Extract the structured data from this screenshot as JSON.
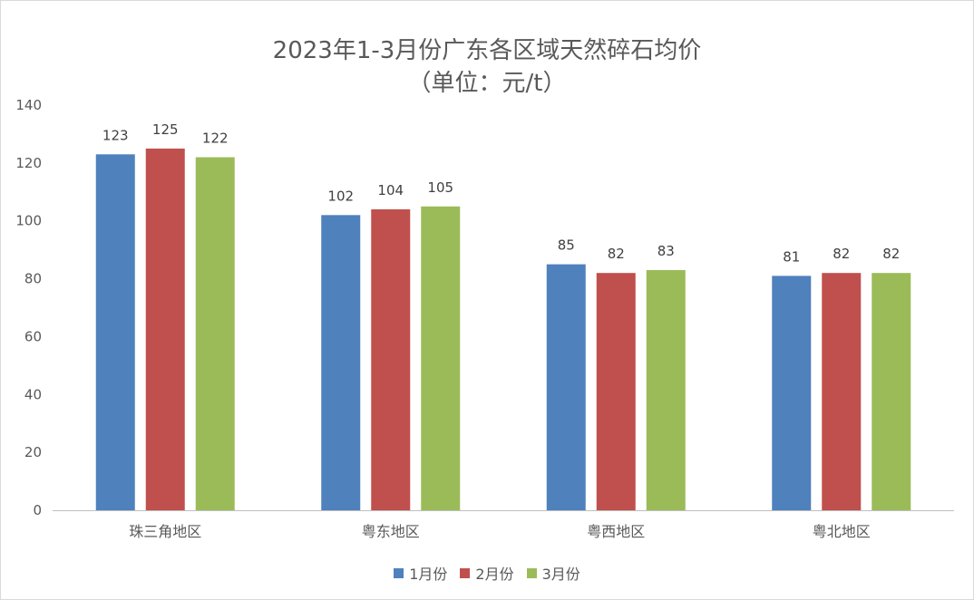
{
  "chart_data": {
    "type": "bar",
    "title": "2023年1-3月份广东各区域天然碎石均价",
    "subtitle": "（单位：元/t）",
    "categories": [
      "珠三角地区",
      "粤东地区",
      "粤西地区",
      "粤北地区"
    ],
    "series": [
      {
        "name": "1月份",
        "color": "#4f81bd",
        "values": [
          123,
          102,
          85,
          81
        ]
      },
      {
        "name": "2月份",
        "color": "#c0504d",
        "values": [
          125,
          104,
          82,
          82
        ]
      },
      {
        "name": "3月份",
        "color": "#9bbb59",
        "values": [
          122,
          105,
          83,
          82
        ]
      }
    ],
    "ylim": [
      0,
      140
    ],
    "yticks": [
      0,
      20,
      40,
      60,
      80,
      100,
      120,
      140
    ],
    "grid": false,
    "legend_position": "bottom"
  }
}
